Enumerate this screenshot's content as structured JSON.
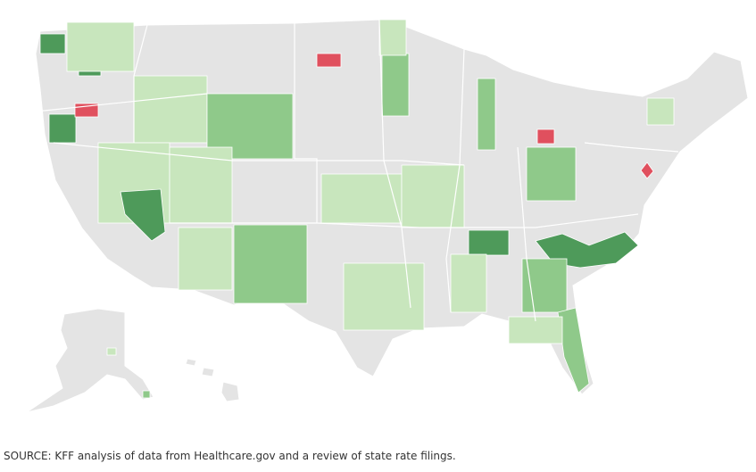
{
  "source": "SOURCE: KFF analysis of data from Healthcare.gov and a review of state rate filings."
}
